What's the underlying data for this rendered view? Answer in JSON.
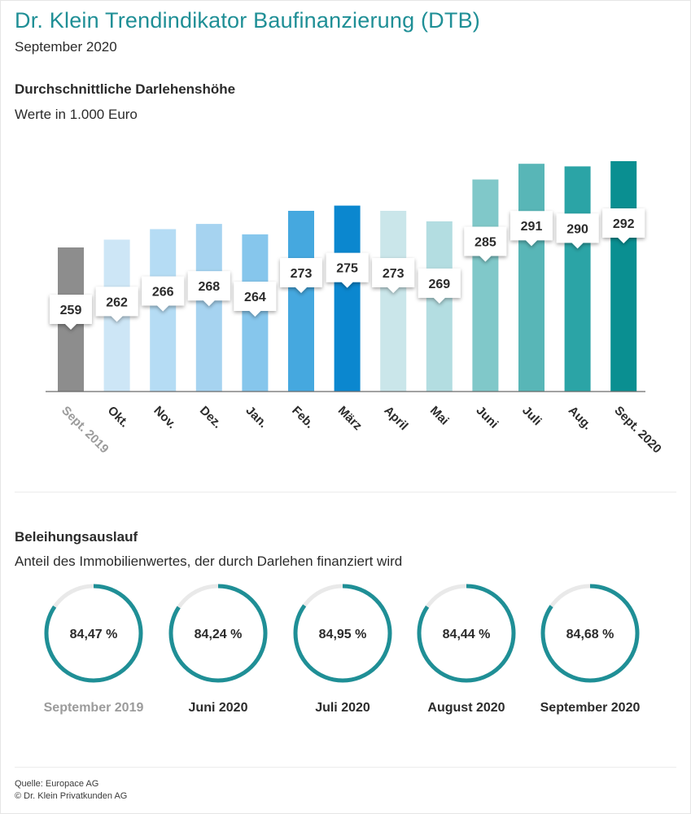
{
  "header": {
    "title": "Dr. Klein Trendindikator Baufinanzierung (DTB)",
    "subtitle": "September 2020"
  },
  "loan_section": {
    "title": "Durchschnittliche Darlehenshöhe",
    "subtitle": "Werte in 1.000 Euro"
  },
  "ltv_section": {
    "title": "Beleihungsauslauf",
    "subtitle": "Anteil des Immobilienwertes, der durch Darlehen finanziert wird"
  },
  "footer": {
    "source": "Quelle: Europace AG",
    "copyright": "© Dr. Klein Privatkunden AG"
  },
  "chart_data": [
    {
      "type": "bar",
      "categories": [
        "Sept. 2019",
        "Okt.",
        "Nov.",
        "Dez.",
        "Jan.",
        "Feb.",
        "März",
        "April",
        "Mai",
        "Juni",
        "Juli",
        "Aug.",
        "Sept. 2020"
      ],
      "values": [
        259,
        262,
        266,
        268,
        264,
        273,
        275,
        273,
        269,
        285,
        291,
        290,
        292
      ],
      "value_labels": [
        "259",
        "262",
        "266",
        "268",
        "264",
        "273",
        "275",
        "273",
        "269",
        "285",
        "291",
        "290",
        "292"
      ],
      "colors": [
        "#8d8d8d",
        "#cde6f6",
        "#b5dcf4",
        "#a6d3f0",
        "#86c6ec",
        "#45a8df",
        "#0b87cf",
        "#cae6ea",
        "#b3dde1",
        "#80c8c9",
        "#58b6b7",
        "#2ba4a6",
        "#0a8f91"
      ],
      "label_colors": [
        "#9b9b9b",
        "#2b2b2b",
        "#2b2b2b",
        "#2b2b2b",
        "#2b2b2b",
        "#2b2b2b",
        "#2b2b2b",
        "#2b2b2b",
        "#2b2b2b",
        "#2b2b2b",
        "#2b2b2b",
        "#2b2b2b",
        "#2b2b2b"
      ],
      "title": "Durchschnittliche Darlehenshöhe",
      "ylabel": "Werte in 1.000 Euro",
      "grid": false
    },
    {
      "type": "pie",
      "categories": [
        "September 2019",
        "Juni 2020",
        "Juli 2020",
        "August 2020",
        "September 2020"
      ],
      "values": [
        84.47,
        84.24,
        84.95,
        84.44,
        84.68
      ],
      "value_labels": [
        "84,47 %",
        "84,24 %",
        "84,95 %",
        "84,44 %",
        "84,68 %"
      ],
      "accent_color": "#1f8f96",
      "track_color": "#e9e9e9"
    }
  ]
}
